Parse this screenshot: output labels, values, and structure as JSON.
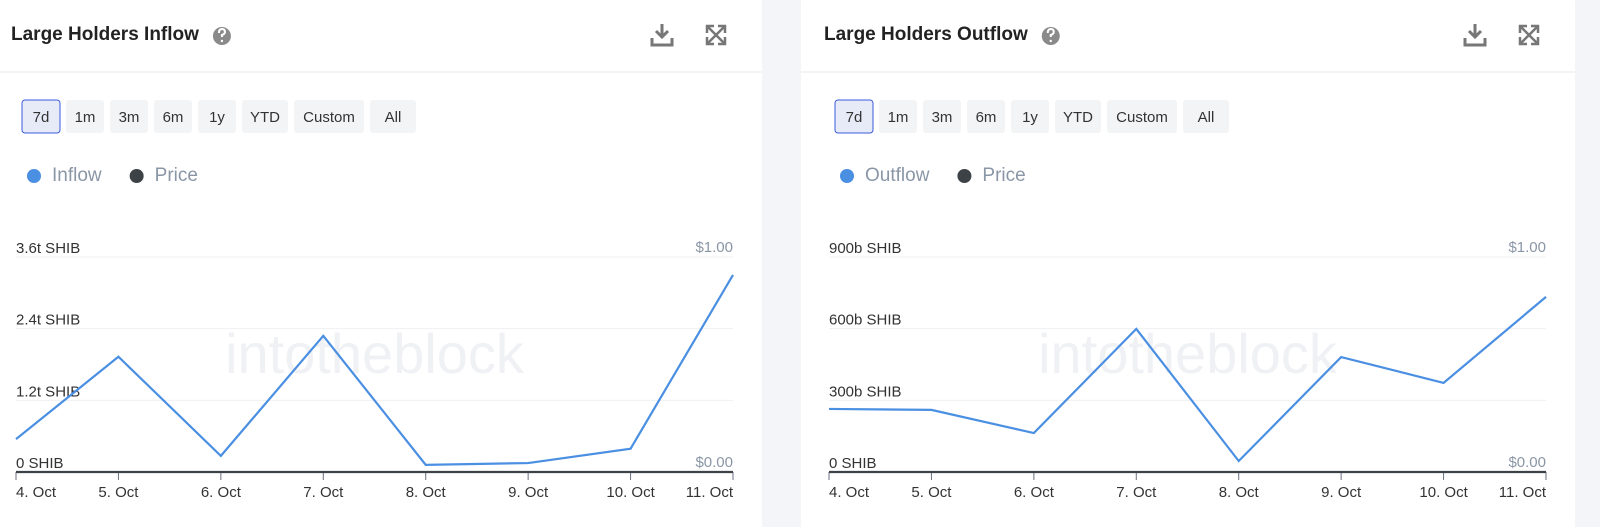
{
  "chart_data": [
    {
      "type": "line",
      "title": "Large Holders Inflow",
      "range_options": [
        "7d",
        "1m",
        "3m",
        "6m",
        "1y",
        "YTD",
        "Custom",
        "All"
      ],
      "selected_range": "7d",
      "watermark": "intotheblock",
      "categories": [
        "4. Oct",
        "5. Oct",
        "6. Oct",
        "7. Oct",
        "8. Oct",
        "9. Oct",
        "10. Oct",
        "11. Oct"
      ],
      "series": [
        {
          "name": "Inflow",
          "color": "#4a8fe2",
          "values": [
            550000000000,
            1930000000000,
            270000000000,
            2280000000000,
            120000000000,
            150000000000,
            390000000000,
            3300000000000
          ]
        },
        {
          "name": "Price",
          "color": "#3d4247",
          "axis": "y2",
          "values": [
            1e-05,
            1e-05,
            1e-05,
            1e-05,
            1e-05,
            1e-05,
            1e-05,
            1e-05
          ]
        }
      ],
      "ylim": [
        0,
        3600000000000
      ],
      "yticks": [
        {
          "value": 0,
          "label": "0 SHIB"
        },
        {
          "value": 1200000000000,
          "label": "1.2t SHIB"
        },
        {
          "value": 2400000000000,
          "label": "2.4t SHIB"
        },
        {
          "value": 3600000000000,
          "label": "3.6t SHIB"
        }
      ],
      "y2lim": [
        0,
        1
      ],
      "y2ticks": [
        {
          "value": 0,
          "label": "$0.00"
        },
        {
          "value": 1,
          "label": "$1.00"
        }
      ],
      "grid": true
    },
    {
      "type": "line",
      "title": "Large Holders Outflow",
      "range_options": [
        "7d",
        "1m",
        "3m",
        "6m",
        "1y",
        "YTD",
        "Custom",
        "All"
      ],
      "selected_range": "7d",
      "watermark": "intotheblock",
      "categories": [
        "4. Oct",
        "5. Oct",
        "6. Oct",
        "7. Oct",
        "8. Oct",
        "9. Oct",
        "10. Oct",
        "11. Oct"
      ],
      "series": [
        {
          "name": "Outflow",
          "color": "#4a8fe2",
          "values": [
            264000000000,
            260000000000,
            163000000000,
            599000000000,
            46000000000,
            481000000000,
            373000000000,
            733000000000
          ]
        },
        {
          "name": "Price",
          "color": "#3d4247",
          "axis": "y2",
          "values": [
            1e-05,
            1e-05,
            1e-05,
            1e-05,
            1e-05,
            1e-05,
            1e-05,
            1e-05
          ]
        }
      ],
      "ylim": [
        0,
        900000000000
      ],
      "yticks": [
        {
          "value": 0,
          "label": "0 SHIB"
        },
        {
          "value": 300000000000,
          "label": "300b SHIB"
        },
        {
          "value": 600000000000,
          "label": "600b SHIB"
        },
        {
          "value": 900000000000,
          "label": "900b SHIB"
        }
      ],
      "y2lim": [
        0,
        1
      ],
      "y2ticks": [
        {
          "value": 0,
          "label": "$0.00"
        },
        {
          "value": 1,
          "label": "$1.00"
        }
      ],
      "grid": true
    }
  ]
}
